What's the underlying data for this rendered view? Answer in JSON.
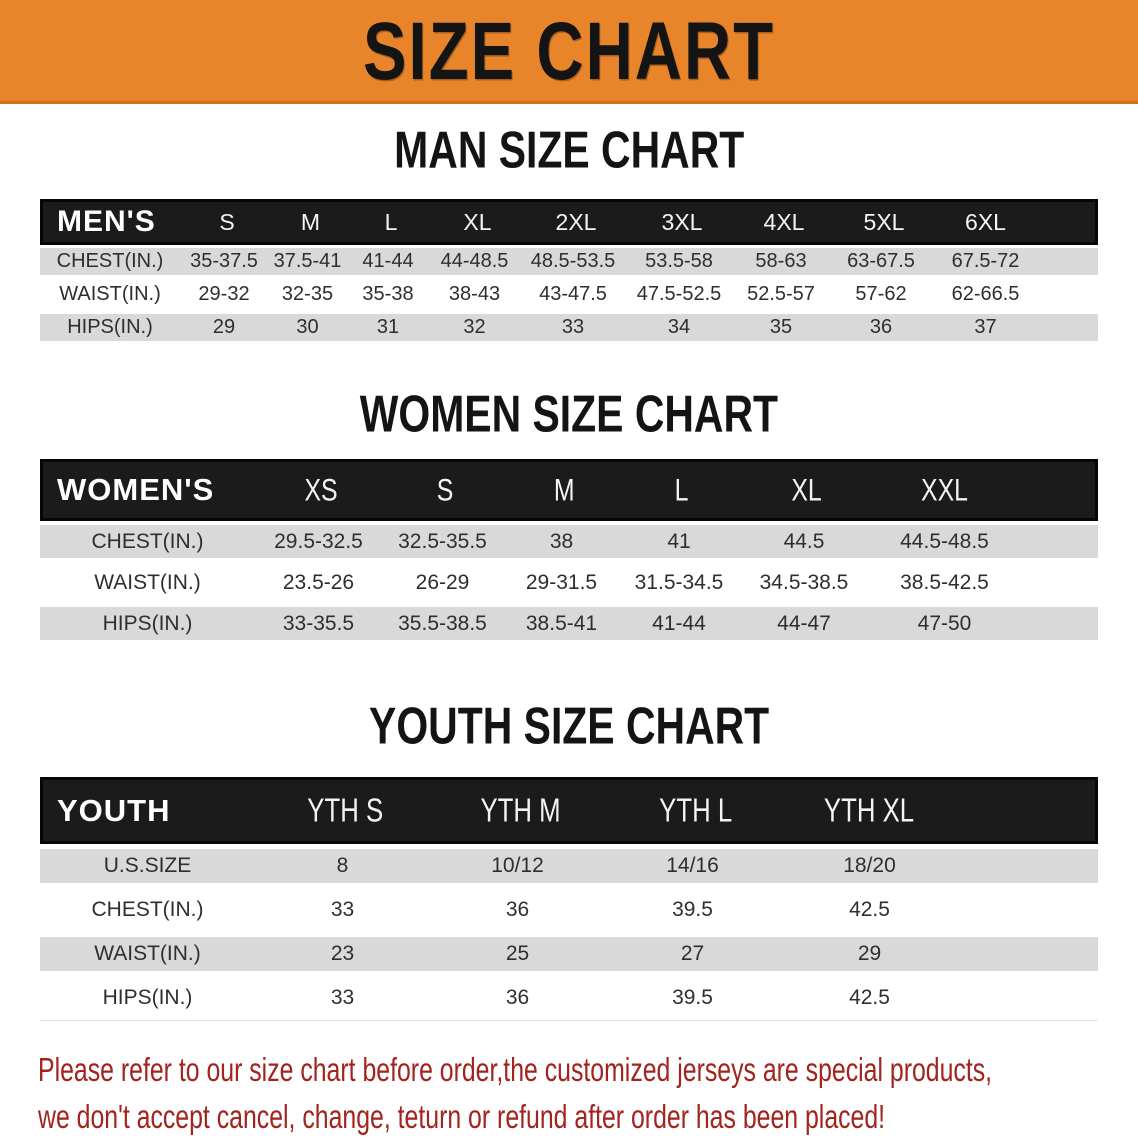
{
  "banner": {
    "title": "SIZE CHART"
  },
  "colors": {
    "banner_bg": "#E8852B",
    "header_bar_bg": "#1B1B1B",
    "stripe_row_bg": "#D9D9D9",
    "note_text": "#A3231E"
  },
  "tables": [
    {
      "title": "MAN SIZE CHART",
      "header": "MEN'S",
      "sizes": [
        "S",
        "M",
        "L",
        "XL",
        "2XL",
        "3XL",
        "4XL",
        "5XL",
        "6XL"
      ],
      "rows": [
        {
          "label": "CHEST(IN.)",
          "values": [
            "35-37.5",
            "37.5-41",
            "41-44",
            "44-48.5",
            "48.5-53.5",
            "53.5-58",
            "58-63",
            "63-67.5",
            "67.5-72"
          ]
        },
        {
          "label": "WAIST(IN.)",
          "values": [
            "29-32",
            "32-35",
            "35-38",
            "38-43",
            "43-47.5",
            "47.5-52.5",
            "52.5-57",
            "57-62",
            "62-66.5"
          ]
        },
        {
          "label": "HIPS(IN.)",
          "values": [
            "29",
            "30",
            "31",
            "32",
            "33",
            "34",
            "35",
            "36",
            "37"
          ]
        }
      ]
    },
    {
      "title": "WOMEN SIZE CHART",
      "header": "WOMEN'S",
      "sizes": [
        "XS",
        "S",
        "M",
        "L",
        "XL",
        "XXL"
      ],
      "rows": [
        {
          "label": "CHEST(IN.)",
          "values": [
            "29.5-32.5",
            "32.5-35.5",
            "38",
            "41",
            "44.5",
            "44.5-48.5"
          ]
        },
        {
          "label": "WAIST(IN.)",
          "values": [
            "23.5-26",
            "26-29",
            "29-31.5",
            "31.5-34.5",
            "34.5-38.5",
            "38.5-42.5"
          ]
        },
        {
          "label": "HIPS(IN.)",
          "values": [
            "33-35.5",
            "35.5-38.5",
            "38.5-41",
            "41-44",
            "44-47",
            "47-50"
          ]
        }
      ]
    },
    {
      "title": "YOUTH SIZE CHART",
      "header": "YOUTH",
      "sizes": [
        "YTH S",
        "YTH M",
        "YTH L",
        "YTH XL"
      ],
      "rows": [
        {
          "label": "U.S.SIZE",
          "values": [
            "8",
            "10/12",
            "14/16",
            "18/20"
          ]
        },
        {
          "label": "CHEST(IN.)",
          "values": [
            "33",
            "36",
            "39.5",
            "42.5"
          ]
        },
        {
          "label": "WAIST(IN.)",
          "values": [
            "23",
            "25",
            "27",
            "29"
          ]
        },
        {
          "label": "HIPS(IN.)",
          "values": [
            "33",
            "36",
            "39.5",
            "42.5"
          ]
        }
      ]
    }
  ],
  "note": {
    "line1": "Please refer to our size chart before order,the customized jerseys are special products,",
    "line2": "we don't accept cancel, change, teturn or refund after order has been placed!"
  }
}
